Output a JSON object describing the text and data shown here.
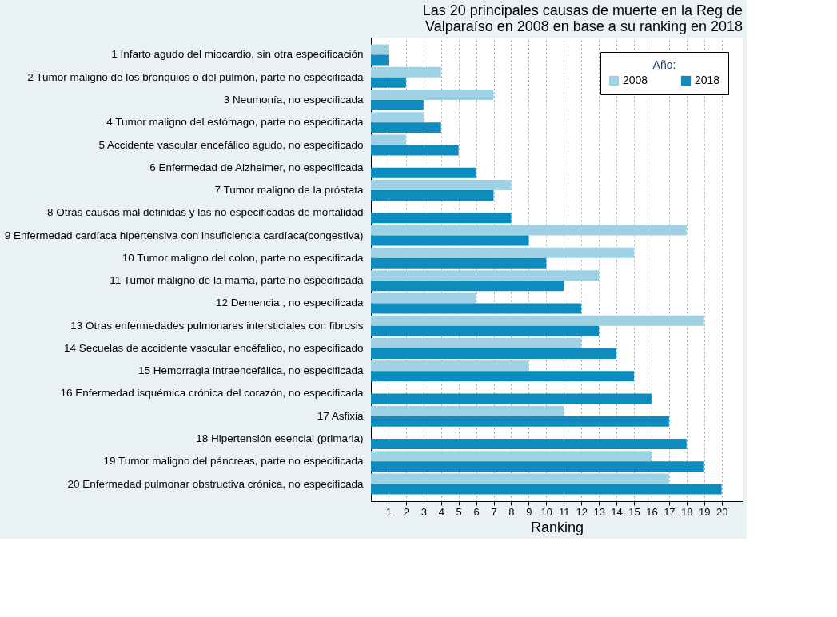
{
  "chart_data": {
    "type": "bar",
    "orientation": "horizontal",
    "title": "Las 20 principales causas de muerte en la Reg de Valparaíso en 2008 en base a su ranking en 2018",
    "xlabel": "Ranking",
    "legend_title": "Año:",
    "categories": [
      "1 Infarto agudo del miocardio, sin otra especificación",
      "2 Tumor maligno de los bronquios o del pulmón, parte no especificada",
      "3 Neumonía, no especificada",
      "4 Tumor maligno del estómago, parte no especificada",
      "5 Accidente vascular encefálico agudo, no especificado",
      "6 Enfermedad de Alzheimer, no especificada",
      "7 Tumor maligno de la próstata",
      "8 Otras causas mal definidas y las no especificadas de mortalidad",
      "9 Enfermedad cardíaca hipertensiva con insuficiencia cardíaca(congestiva)",
      "10 Tumor maligno del colon, parte no especificada",
      "11 Tumor maligno de la mama, parte no especificada",
      "12 Demencia , no especificada",
      "13 Otras enfermedades pulmonares intersticiales con fibrosis",
      "14 Secuelas de accidente vascular encéfalico, no especificado",
      "15 Hemorragia intraencefálica, no especificada",
      "16 Enfermedad isquémica crónica del corazón, no especificada",
      "17 Asfixia",
      "18 Hipertensión esencial (primaria)",
      "19 Tumor maligno del páncreas, parte no especificada",
      "20 Enfermedad pulmonar obstructiva crónica, no especificada"
    ],
    "series": [
      {
        "name": "2008",
        "color": "#9fd1e4",
        "values": [
          1,
          4,
          7,
          3,
          2,
          null,
          8,
          null,
          18,
          15,
          13,
          6,
          19,
          12,
          9,
          null,
          11,
          null,
          16,
          17
        ]
      },
      {
        "name": "2018",
        "color": "#0e8cbf",
        "values": [
          1,
          2,
          3,
          4,
          5,
          6,
          7,
          8,
          9,
          10,
          11,
          12,
          13,
          14,
          15,
          16,
          17,
          18,
          19,
          20
        ]
      }
    ],
    "xlim": [
      0,
      21.2
    ],
    "xticks": [
      1,
      2,
      3,
      4,
      5,
      6,
      7,
      8,
      9,
      10,
      11,
      12,
      13,
      14,
      15,
      16,
      17,
      18,
      19,
      20
    ],
    "grid": "x",
    "legend": "top right"
  }
}
